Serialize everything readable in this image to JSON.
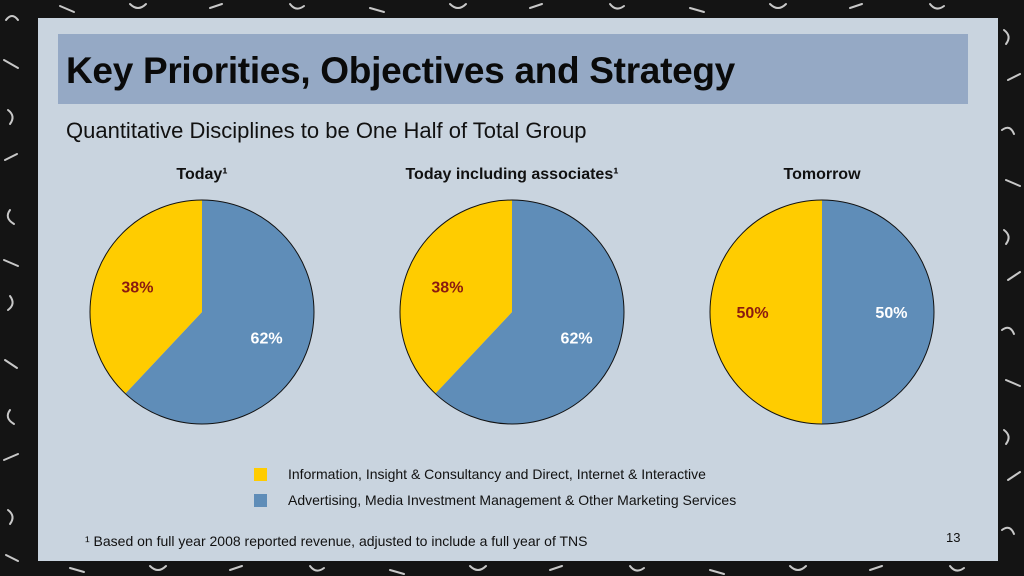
{
  "slide": {
    "title": "Key Priorities, Objectives and Strategy",
    "subtitle": "Quantitative Disciplines to be One Half of Total Group",
    "footnote": "¹ Based on full year 2008 reported revenue, adjusted to include a full year of TNS",
    "page_number": "13"
  },
  "colors": {
    "yellow": "#ffcc00",
    "blue": "#5f8db8",
    "slide_bg": "#c9d4df",
    "title_bar": "#95a9c5"
  },
  "chart_data": [
    {
      "type": "pie",
      "title": "Today¹",
      "slices": [
        {
          "legend_key": "information",
          "value": 38,
          "label": "38%",
          "color": "#ffcc00"
        },
        {
          "legend_key": "advertising",
          "value": 62,
          "label": "62%",
          "color": "#5f8db8"
        }
      ]
    },
    {
      "type": "pie",
      "title": "Today including associates¹",
      "slices": [
        {
          "legend_key": "information",
          "value": 38,
          "label": "38%",
          "color": "#ffcc00"
        },
        {
          "legend_key": "advertising",
          "value": 62,
          "label": "62%",
          "color": "#5f8db8"
        }
      ]
    },
    {
      "type": "pie",
      "title": "Tomorrow",
      "slices": [
        {
          "legend_key": "information",
          "value": 50,
          "label": "50%",
          "color": "#ffcc00"
        },
        {
          "legend_key": "advertising",
          "value": 50,
          "label": "50%",
          "color": "#5f8db8"
        }
      ]
    }
  ],
  "legend": [
    {
      "key": "information",
      "label": "Information, Insight & Consultancy and Direct, Internet & Interactive",
      "color": "#ffcc00"
    },
    {
      "key": "advertising",
      "label": "Advertising, Media Investment Management & Other Marketing Services",
      "color": "#5f8db8"
    }
  ]
}
